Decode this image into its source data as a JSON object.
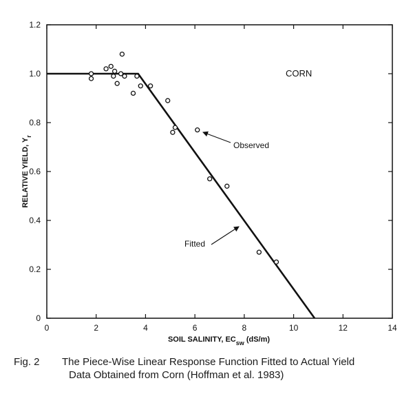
{
  "chart_data": {
    "type": "scatter",
    "title": "",
    "xlabel": "SOIL SALINITY, EC",
    "xlabel_sub": "sw",
    "xlabel_unit": " (dS/m)",
    "ylabel": "RELATIVE YIELD, Y",
    "ylabel_sub": "r",
    "xlim": [
      0,
      14
    ],
    "ylim": [
      0,
      1.2
    ],
    "x_ticks": [
      0,
      2,
      4,
      6,
      8,
      10,
      12,
      14
    ],
    "y_ticks": [
      0,
      0.2,
      0.4,
      0.6,
      0.8,
      1.0,
      1.2
    ],
    "x_tick_labels": [
      "0",
      "2",
      "4",
      "6",
      "8",
      "10",
      "12",
      "14"
    ],
    "y_tick_labels": [
      "0",
      "0.2",
      "0.4",
      "0.6",
      "0.8",
      "1.0",
      "1.2"
    ],
    "grid": false,
    "series": [
      {
        "name": "Observed",
        "kind": "points",
        "x": [
          1.8,
          1.8,
          2.4,
          2.6,
          2.7,
          2.75,
          2.85,
          3.0,
          3.05,
          3.15,
          3.5,
          3.65,
          3.8,
          4.2,
          4.9,
          5.1,
          5.2,
          6.1,
          6.6,
          7.3,
          8.6,
          9.3
        ],
        "y": [
          1.0,
          0.98,
          1.02,
          1.03,
          0.99,
          1.01,
          0.96,
          1.0,
          1.08,
          0.99,
          0.92,
          0.99,
          0.95,
          0.95,
          0.89,
          0.76,
          0.78,
          0.77,
          0.57,
          0.54,
          0.27,
          0.23
        ]
      },
      {
        "name": "Fitted",
        "kind": "line",
        "x": [
          0,
          3.7,
          10.85
        ],
        "y": [
          1.0,
          1.0,
          0.0
        ]
      }
    ],
    "annotations": [
      {
        "text": "CORN"
      },
      {
        "text": "Observed",
        "points_to": [
          6.1,
          0.77
        ]
      },
      {
        "text": "Fitted",
        "points_to": [
          8.0,
          0.38
        ]
      }
    ]
  },
  "caption": {
    "fig_label": "Fig.  2",
    "line1": "The Piece-Wise Linear Response Function Fitted to Actual Yield",
    "line2": "Data Obtained from Corn (Hoffman et al. 1983)"
  }
}
